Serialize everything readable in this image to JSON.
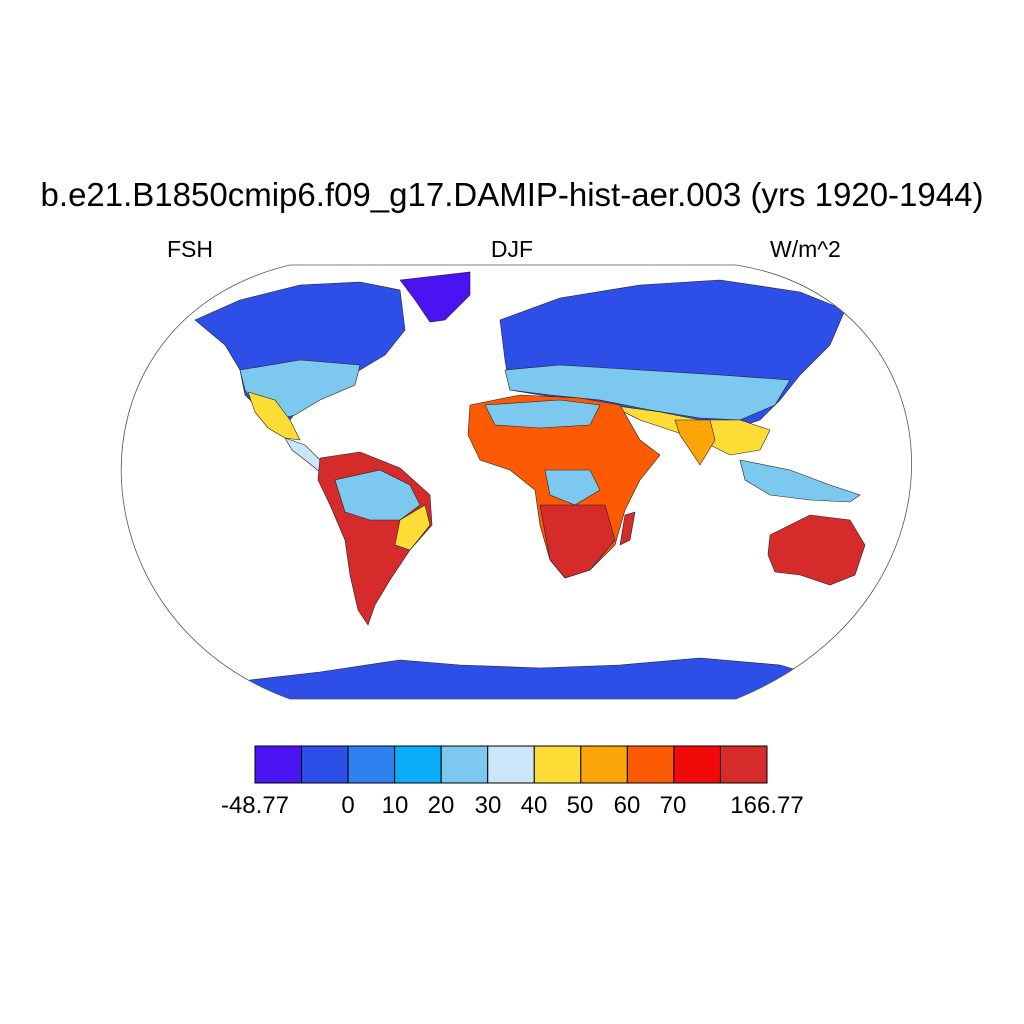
{
  "title": "b.e21.B1850cmip6.f09_g17.DAMIP-hist-aer.003 (yrs 1920-1944)",
  "left_label": "FSH",
  "center_label": "DJF",
  "right_label": "W/m^2",
  "colorbar": {
    "colors": [
      "#4a13f2",
      "#2d4fe8",
      "#2f80ef",
      "#0aaef8",
      "#7cc8ee",
      "#c9e7f8",
      "#fddd35",
      "#fba509",
      "#fc5b04",
      "#f20a0a",
      "#d62b2b"
    ],
    "labels": [
      "-48.77",
      "0",
      "10",
      "20",
      "30",
      "40",
      "50",
      "60",
      "70",
      "166.77"
    ]
  }
}
